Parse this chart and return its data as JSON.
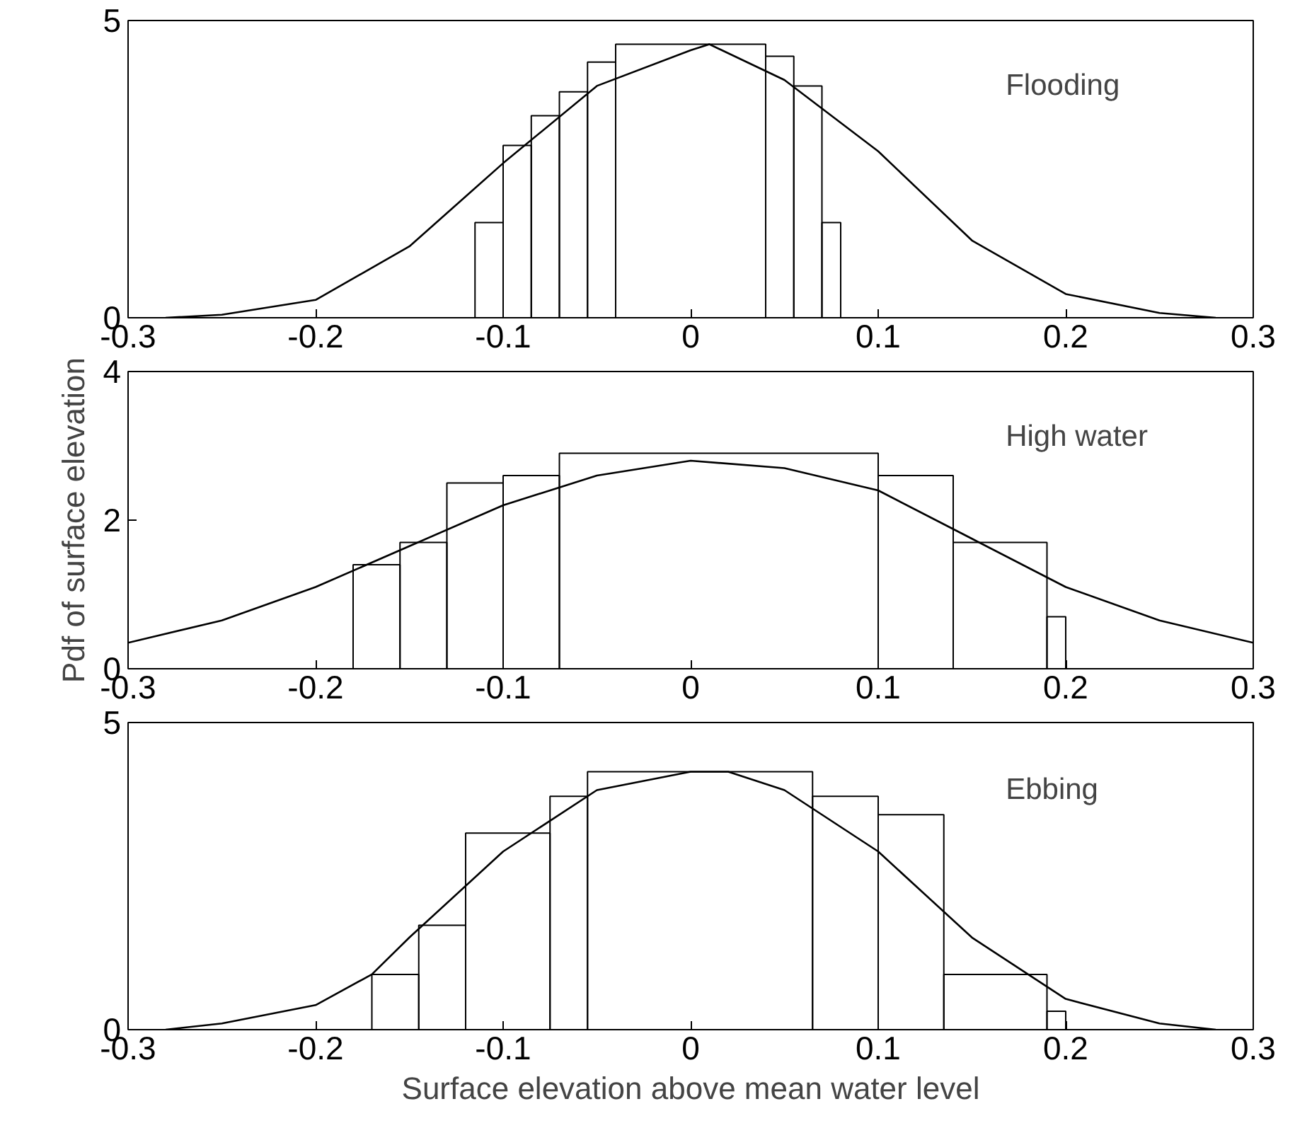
{
  "chart_data": [
    {
      "type": "histogram",
      "annotations": [
        "Flooding"
      ],
      "xlim": [
        -0.3,
        0.3
      ],
      "ylim": [
        0,
        5
      ],
      "xticks": [
        -0.3,
        -0.2,
        -0.1,
        0,
        0.1,
        0.2,
        0.3
      ],
      "yticks": [
        0,
        5
      ],
      "series": [
        {
          "color": "#000000",
          "bins": [
            -0.115,
            -0.1,
            -0.085,
            -0.07,
            -0.055,
            -0.04,
            0.04,
            0.055,
            0.07,
            0.08
          ],
          "values": [
            1.6,
            2.9,
            3.4,
            3.8,
            4.3,
            4.6,
            4.4,
            3.9,
            1.6
          ]
        },
        {
          "type": "line",
          "color": "#000000",
          "x": [
            -0.28,
            -0.25,
            -0.2,
            -0.15,
            -0.1,
            -0.05,
            0,
            0.01,
            0.05,
            0.1,
            0.15,
            0.2,
            0.25,
            0.28
          ],
          "values": [
            0,
            0.05,
            0.3,
            1.2,
            2.6,
            3.9,
            4.5,
            4.6,
            4.0,
            2.8,
            1.3,
            0.4,
            0.08,
            0
          ]
        }
      ]
    },
    {
      "type": "histogram",
      "annotations": [
        "High water"
      ],
      "ylabel": "Pdf of surface elevation",
      "xlim": [
        -0.3,
        0.3
      ],
      "ylim": [
        0,
        4
      ],
      "xticks": [
        -0.3,
        -0.2,
        -0.1,
        0,
        0.1,
        0.2,
        0.3
      ],
      "yticks": [
        0,
        2,
        4
      ],
      "series": [
        {
          "color": "#000000",
          "bins": [
            -0.18,
            -0.155,
            -0.13,
            -0.1,
            -0.07,
            0.1,
            0.14,
            0.19,
            0.2
          ],
          "values": [
            1.4,
            1.7,
            2.5,
            2.6,
            2.9,
            2.6,
            1.7,
            0.7
          ]
        },
        {
          "type": "line",
          "color": "#000000",
          "x": [
            -0.3,
            -0.25,
            -0.2,
            -0.15,
            -0.1,
            -0.05,
            0,
            0.05,
            0.1,
            0.15,
            0.2,
            0.25,
            0.3
          ],
          "values": [
            0.35,
            0.65,
            1.1,
            1.65,
            2.2,
            2.6,
            2.8,
            2.7,
            2.4,
            1.75,
            1.1,
            0.65,
            0.35
          ]
        }
      ]
    },
    {
      "type": "histogram",
      "annotations": [
        "Ebbing"
      ],
      "xlabel": "Surface elevation above mean water level",
      "xlim": [
        -0.3,
        0.3
      ],
      "ylim": [
        0,
        5
      ],
      "xticks": [
        -0.3,
        -0.2,
        -0.1,
        0,
        0.1,
        0.2,
        0.3
      ],
      "yticks": [
        0,
        5
      ],
      "series": [
        {
          "color": "#000000",
          "bins": [
            -0.17,
            -0.145,
            -0.12,
            -0.075,
            -0.055,
            0.065,
            0.1,
            0.135,
            0.19,
            0.2
          ],
          "values": [
            0.9,
            1.7,
            3.2,
            3.8,
            4.2,
            3.8,
            3.5,
            0.9,
            0.3
          ]
        },
        {
          "type": "line",
          "color": "#000000",
          "x": [
            -0.28,
            -0.25,
            -0.2,
            -0.17,
            -0.15,
            -0.1,
            -0.05,
            0,
            0.02,
            0.05,
            0.1,
            0.15,
            0.2,
            0.25,
            0.28
          ],
          "values": [
            0,
            0.1,
            0.4,
            0.9,
            1.5,
            2.9,
            3.9,
            4.2,
            4.2,
            3.9,
            2.9,
            1.5,
            0.5,
            0.1,
            0
          ]
        }
      ]
    }
  ]
}
